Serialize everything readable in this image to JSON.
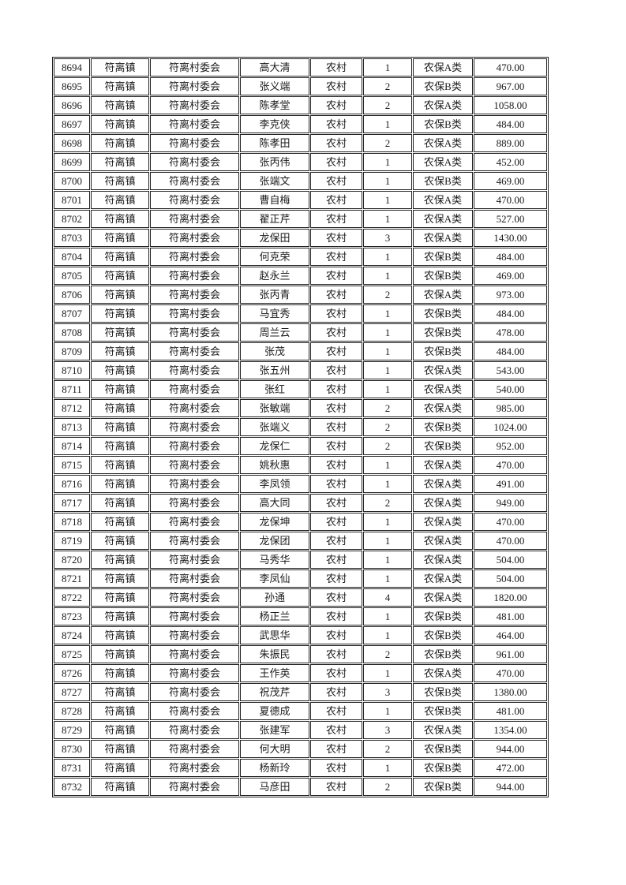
{
  "page": {
    "background": "#ffffff",
    "text_color": "#1b1b1b",
    "border_color": "#222222"
  },
  "table": {
    "rows": [
      [
        "8694",
        "符离镇",
        "符离村委会",
        "高大清",
        "农村",
        "1",
        "农保A类",
        "470.00"
      ],
      [
        "8695",
        "符离镇",
        "符离村委会",
        "张义端",
        "农村",
        "2",
        "农保B类",
        "967.00"
      ],
      [
        "8696",
        "符离镇",
        "符离村委会",
        "陈孝堂",
        "农村",
        "2",
        "农保A类",
        "1058.00"
      ],
      [
        "8697",
        "符离镇",
        "符离村委会",
        "李克侠",
        "农村",
        "1",
        "农保B类",
        "484.00"
      ],
      [
        "8698",
        "符离镇",
        "符离村委会",
        "陈孝田",
        "农村",
        "2",
        "农保A类",
        "889.00"
      ],
      [
        "8699",
        "符离镇",
        "符离村委会",
        "张丙伟",
        "农村",
        "1",
        "农保A类",
        "452.00"
      ],
      [
        "8700",
        "符离镇",
        "符离村委会",
        "张端文",
        "农村",
        "1",
        "农保B类",
        "469.00"
      ],
      [
        "8701",
        "符离镇",
        "符离村委会",
        "曹自梅",
        "农村",
        "1",
        "农保A类",
        "470.00"
      ],
      [
        "8702",
        "符离镇",
        "符离村委会",
        "翟正芹",
        "农村",
        "1",
        "农保A类",
        "527.00"
      ],
      [
        "8703",
        "符离镇",
        "符离村委会",
        "龙保田",
        "农村",
        "3",
        "农保A类",
        "1430.00"
      ],
      [
        "8704",
        "符离镇",
        "符离村委会",
        "何克荣",
        "农村",
        "1",
        "农保B类",
        "484.00"
      ],
      [
        "8705",
        "符离镇",
        "符离村委会",
        "赵永兰",
        "农村",
        "1",
        "农保B类",
        "469.00"
      ],
      [
        "8706",
        "符离镇",
        "符离村委会",
        "张丙青",
        "农村",
        "2",
        "农保A类",
        "973.00"
      ],
      [
        "8707",
        "符离镇",
        "符离村委会",
        "马宜秀",
        "农村",
        "1",
        "农保B类",
        "484.00"
      ],
      [
        "8708",
        "符离镇",
        "符离村委会",
        "周兰云",
        "农村",
        "1",
        "农保B类",
        "478.00"
      ],
      [
        "8709",
        "符离镇",
        "符离村委会",
        "张茂",
        "农村",
        "1",
        "农保B类",
        "484.00"
      ],
      [
        "8710",
        "符离镇",
        "符离村委会",
        "张五州",
        "农村",
        "1",
        "农保A类",
        "543.00"
      ],
      [
        "8711",
        "符离镇",
        "符离村委会",
        "张红",
        "农村",
        "1",
        "农保A类",
        "540.00"
      ],
      [
        "8712",
        "符离镇",
        "符离村委会",
        "张敏端",
        "农村",
        "2",
        "农保A类",
        "985.00"
      ],
      [
        "8713",
        "符离镇",
        "符离村委会",
        "张端义",
        "农村",
        "2",
        "农保B类",
        "1024.00"
      ],
      [
        "8714",
        "符离镇",
        "符离村委会",
        "龙保仁",
        "农村",
        "2",
        "农保B类",
        "952.00"
      ],
      [
        "8715",
        "符离镇",
        "符离村委会",
        "姚秋惠",
        "农村",
        "1",
        "农保A类",
        "470.00"
      ],
      [
        "8716",
        "符离镇",
        "符离村委会",
        "李凤领",
        "农村",
        "1",
        "农保A类",
        "491.00"
      ],
      [
        "8717",
        "符离镇",
        "符离村委会",
        "高大同",
        "农村",
        "2",
        "农保A类",
        "949.00"
      ],
      [
        "8718",
        "符离镇",
        "符离村委会",
        "龙保坤",
        "农村",
        "1",
        "农保A类",
        "470.00"
      ],
      [
        "8719",
        "符离镇",
        "符离村委会",
        "龙保团",
        "农村",
        "1",
        "农保A类",
        "470.00"
      ],
      [
        "8720",
        "符离镇",
        "符离村委会",
        "马秀华",
        "农村",
        "1",
        "农保A类",
        "504.00"
      ],
      [
        "8721",
        "符离镇",
        "符离村委会",
        "李凤仙",
        "农村",
        "1",
        "农保A类",
        "504.00"
      ],
      [
        "8722",
        "符离镇",
        "符离村委会",
        "孙通",
        "农村",
        "4",
        "农保A类",
        "1820.00"
      ],
      [
        "8723",
        "符离镇",
        "符离村委会",
        "杨正兰",
        "农村",
        "1",
        "农保B类",
        "481.00"
      ],
      [
        "8724",
        "符离镇",
        "符离村委会",
        "武思华",
        "农村",
        "1",
        "农保B类",
        "464.00"
      ],
      [
        "8725",
        "符离镇",
        "符离村委会",
        "朱振民",
        "农村",
        "2",
        "农保B类",
        "961.00"
      ],
      [
        "8726",
        "符离镇",
        "符离村委会",
        "王作英",
        "农村",
        "1",
        "农保A类",
        "470.00"
      ],
      [
        "8727",
        "符离镇",
        "符离村委会",
        "祝茂芹",
        "农村",
        "3",
        "农保B类",
        "1380.00"
      ],
      [
        "8728",
        "符离镇",
        "符离村委会",
        "夏德成",
        "农村",
        "1",
        "农保B类",
        "481.00"
      ],
      [
        "8729",
        "符离镇",
        "符离村委会",
        "张建军",
        "农村",
        "3",
        "农保A类",
        "1354.00"
      ],
      [
        "8730",
        "符离镇",
        "符离村委会",
        "何大明",
        "农村",
        "2",
        "农保B类",
        "944.00"
      ],
      [
        "8731",
        "符离镇",
        "符离村委会",
        "杨新玲",
        "农村",
        "1",
        "农保B类",
        "472.00"
      ],
      [
        "8732",
        "符离镇",
        "符离村委会",
        "马彦田",
        "农村",
        "2",
        "农保B类",
        "944.00"
      ]
    ]
  }
}
